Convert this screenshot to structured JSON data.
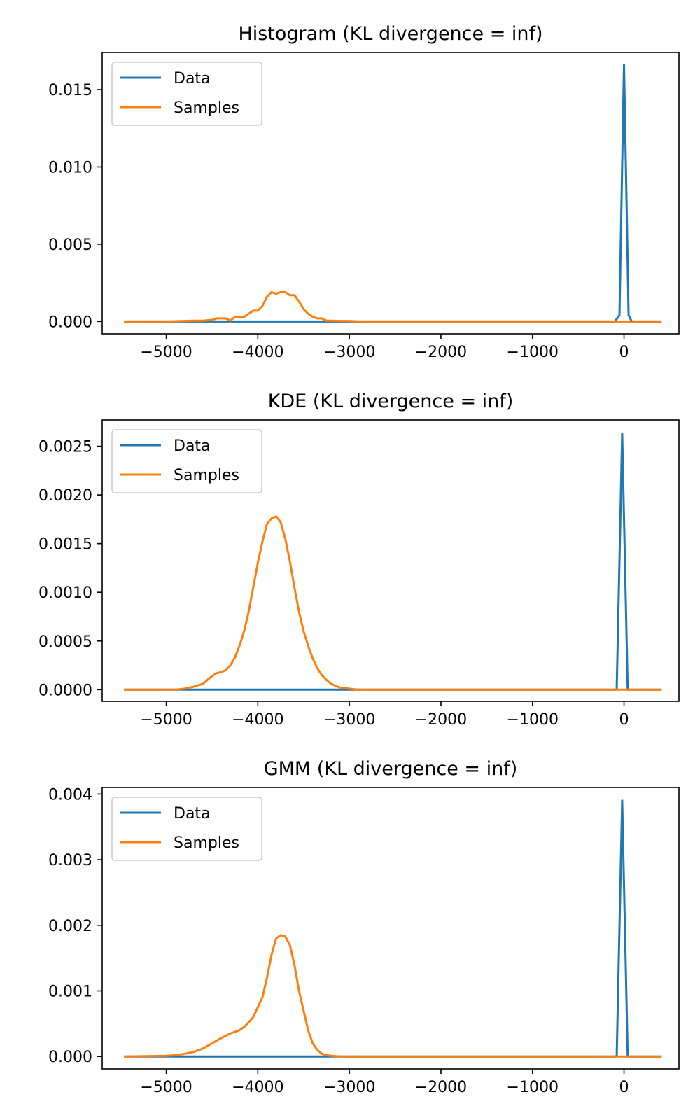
{
  "chart_data": [
    {
      "type": "line",
      "title": "Histogram (KL divergence = inf)",
      "xlabel": "",
      "ylabel": "",
      "xlim": [
        -5700,
        600
      ],
      "ylim": [
        -0.0008,
        0.0174
      ],
      "xticks": [
        -5000,
        -4000,
        -3000,
        -2000,
        -1000,
        0
      ],
      "xtick_labels": [
        "−5000",
        "−4000",
        "−3000",
        "−2000",
        "−1000",
        "0"
      ],
      "yticks": [
        0,
        0.005,
        0.01,
        0.015
      ],
      "ytick_labels": [
        "0.000",
        "0.005",
        "0.010",
        "0.015"
      ],
      "legend": {
        "position": "upper left",
        "entries": [
          "Data",
          "Samples"
        ]
      },
      "grid": false,
      "series": [
        {
          "name": "Data",
          "color": "#1f77b4",
          "x": [
            -5450,
            -100,
            -50,
            0,
            50,
            85,
            400
          ],
          "y": [
            0,
            0,
            0.0004,
            0.0166,
            0.0004,
            0,
            0
          ]
        },
        {
          "name": "Samples",
          "color": "#ff7f0e",
          "x": [
            -5450,
            -5000,
            -4700,
            -4600,
            -4500,
            -4450,
            -4400,
            -4350,
            -4300,
            -4250,
            -4200,
            -4150,
            -4100,
            -4050,
            -4000,
            -3950,
            -3900,
            -3850,
            -3800,
            -3750,
            -3700,
            -3650,
            -3600,
            -3550,
            -3500,
            -3450,
            -3400,
            -3350,
            -3300,
            -3250,
            -3200,
            -3100,
            -3000,
            -2900,
            400
          ],
          "y": [
            0,
            0,
            5e-05,
            5e-05,
            0.0001,
            0.0002,
            0.0002,
            0.0002,
            5e-05,
            0.0003,
            0.0003,
            0.0003,
            0.0005,
            0.0007,
            0.0007,
            0.001,
            0.0016,
            0.0019,
            0.0018,
            0.0019,
            0.0019,
            0.0017,
            0.0017,
            0.0013,
            0.0008,
            0.0005,
            0.0003,
            0.0002,
            0.0002,
            5e-05,
            5e-05,
            3e-05,
            3e-05,
            0,
            0
          ]
        }
      ]
    },
    {
      "type": "line",
      "title": "KDE (KL divergence = inf)",
      "xlabel": "",
      "ylabel": "",
      "xlim": [
        -5700,
        600
      ],
      "ylim": [
        -0.00012,
        0.00277
      ],
      "xticks": [
        -5000,
        -4000,
        -3000,
        -2000,
        -1000,
        0
      ],
      "xtick_labels": [
        "−5000",
        "−4000",
        "−3000",
        "−2000",
        "−1000",
        "0"
      ],
      "yticks": [
        0,
        0.0005,
        0.001,
        0.0015,
        0.002,
        0.0025
      ],
      "ytick_labels": [
        "0.0000",
        "0.0005",
        "0.0010",
        "0.0015",
        "0.0020",
        "0.0025"
      ],
      "legend": {
        "position": "upper left",
        "entries": [
          "Data",
          "Samples"
        ]
      },
      "grid": false,
      "series": [
        {
          "name": "Data",
          "color": "#1f77b4",
          "x": [
            -5450,
            -80,
            -20,
            40,
            400
          ],
          "y": [
            0,
            0,
            0.00263,
            0,
            0
          ]
        },
        {
          "name": "Samples",
          "color": "#ff7f0e",
          "x": [
            -5450,
            -4900,
            -4800,
            -4700,
            -4600,
            -4550,
            -4500,
            -4450,
            -4400,
            -4350,
            -4300,
            -4250,
            -4200,
            -4150,
            -4100,
            -4050,
            -4000,
            -3950,
            -3900,
            -3850,
            -3800,
            -3750,
            -3700,
            -3650,
            -3600,
            -3550,
            -3500,
            -3450,
            -3400,
            -3350,
            -3300,
            -3250,
            -3200,
            -3150,
            -3100,
            -3000,
            -2900,
            -2800,
            400
          ],
          "y": [
            0,
            0,
            1e-05,
            3e-05,
            6e-05,
            0.0001,
            0.00014,
            0.00017,
            0.00018,
            0.0002,
            0.00025,
            0.00033,
            0.00045,
            0.0006,
            0.0008,
            0.00105,
            0.0013,
            0.00152,
            0.0017,
            0.00176,
            0.00178,
            0.00172,
            0.00155,
            0.00132,
            0.00105,
            0.0008,
            0.0006,
            0.00045,
            0.00032,
            0.00022,
            0.00015,
            0.0001,
            6e-05,
            4e-05,
            2e-05,
            1e-05,
            0,
            0,
            0
          ]
        }
      ]
    },
    {
      "type": "line",
      "title": "GMM (KL divergence = inf)",
      "xlabel": "",
      "ylabel": "",
      "xlim": [
        -5700,
        600
      ],
      "ylim": [
        -0.00019,
        0.0041
      ],
      "xticks": [
        -5000,
        -4000,
        -3000,
        -2000,
        -1000,
        0
      ],
      "xtick_labels": [
        "−5000",
        "−4000",
        "−3000",
        "−2000",
        "−1000",
        "0"
      ],
      "yticks": [
        0,
        0.001,
        0.002,
        0.003,
        0.004
      ],
      "ytick_labels": [
        "0.000",
        "0.001",
        "0.002",
        "0.003",
        "0.004"
      ],
      "legend": {
        "position": "upper left",
        "entries": [
          "Data",
          "Samples"
        ]
      },
      "grid": false,
      "series": [
        {
          "name": "Data",
          "color": "#1f77b4",
          "x": [
            -5450,
            -80,
            -20,
            40,
            400
          ],
          "y": [
            0,
            0,
            0.0039,
            0,
            0
          ]
        },
        {
          "name": "Samples",
          "color": "#ff7f0e",
          "x": [
            -5450,
            -5000,
            -4900,
            -4800,
            -4700,
            -4600,
            -4500,
            -4400,
            -4300,
            -4200,
            -4150,
            -4100,
            -4050,
            -4000,
            -3950,
            -3900,
            -3850,
            -3800,
            -3750,
            -3700,
            -3650,
            -3600,
            -3550,
            -3500,
            -3450,
            -3400,
            -3350,
            -3300,
            -3250,
            -3200,
            -3100,
            -3000,
            400
          ],
          "y": [
            0,
            1e-05,
            2e-05,
            4e-05,
            7e-05,
            0.00012,
            0.0002,
            0.00028,
            0.00035,
            0.0004,
            0.00045,
            0.00052,
            0.0006,
            0.00075,
            0.0009,
            0.0012,
            0.00155,
            0.0018,
            0.00185,
            0.00183,
            0.0017,
            0.0014,
            0.001,
            0.0007,
            0.0004,
            0.0002,
            0.0001,
            4e-05,
            2e-05,
            1e-05,
            0,
            0,
            0
          ]
        }
      ]
    }
  ]
}
